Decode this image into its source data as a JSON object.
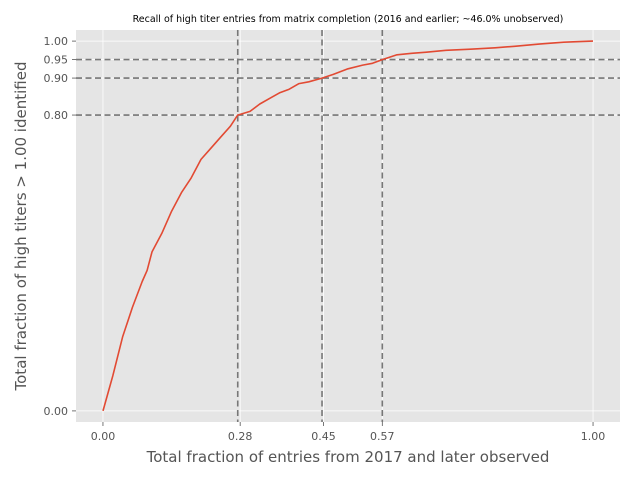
{
  "chart_data": {
    "type": "line",
    "title": "Recall of high titer entries from matrix completion (2016 and earlier; ~46.0% unobserved)",
    "xlabel": "Total fraction of entries from 2017 and later observed",
    "ylabel": "Total fraction of high titers > 1.00 identified",
    "xlim": [
      -0.055,
      1.055
    ],
    "ylim": [
      -0.03,
      1.03
    ],
    "grid": true,
    "x_ticks": [
      {
        "value": 0.0,
        "label": "0.00"
      },
      {
        "value": 0.28,
        "label": "0.28"
      },
      {
        "value": 0.45,
        "label": "0.45"
      },
      {
        "value": 0.57,
        "label": "0.57"
      },
      {
        "value": 1.0,
        "label": "1.00"
      }
    ],
    "y_ticks": [
      {
        "value": 0.0,
        "label": "0.00"
      },
      {
        "value": 0.8,
        "label": "0.80"
      },
      {
        "value": 0.9,
        "label": "0.90"
      },
      {
        "value": 0.95,
        "label": "0.95"
      },
      {
        "value": 1.0,
        "label": "1.00"
      }
    ],
    "reference_lines": {
      "vertical": [
        0.275,
        0.447,
        0.57
      ],
      "horizontal": [
        0.8,
        0.9,
        0.95
      ]
    },
    "series": [
      {
        "color": "#e24a33",
        "x": [
          0.0,
          0.02,
          0.04,
          0.06,
          0.08,
          0.09,
          0.1,
          0.12,
          0.14,
          0.16,
          0.18,
          0.2,
          0.22,
          0.24,
          0.26,
          0.275,
          0.3,
          0.32,
          0.34,
          0.36,
          0.38,
          0.4,
          0.42,
          0.447,
          0.47,
          0.5,
          0.53,
          0.55,
          0.57,
          0.6,
          0.63,
          0.66,
          0.7,
          0.75,
          0.8,
          0.84,
          0.89,
          0.94,
          1.0
        ],
        "y": [
          0.0,
          0.095,
          0.2,
          0.28,
          0.35,
          0.38,
          0.43,
          0.48,
          0.54,
          0.59,
          0.63,
          0.68,
          0.71,
          0.74,
          0.77,
          0.8,
          0.81,
          0.83,
          0.845,
          0.86,
          0.87,
          0.885,
          0.89,
          0.9,
          0.91,
          0.925,
          0.935,
          0.94,
          0.95,
          0.963,
          0.967,
          0.97,
          0.975,
          0.978,
          0.982,
          0.986,
          0.992,
          0.997,
          1.0
        ]
      }
    ]
  }
}
